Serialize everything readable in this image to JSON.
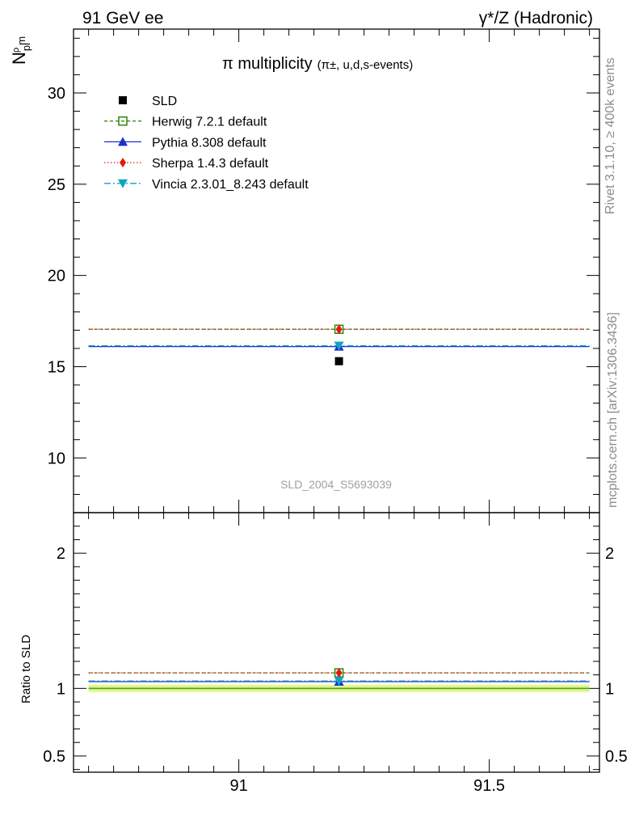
{
  "header": {
    "left": "91 GeV ee",
    "right": "γ*/Z (Hadronic)"
  },
  "side_labels": {
    "rivet": "Rivet 3.1.10, ≥ 400k events",
    "mcplots": "mcplots.cern.ch [arXiv:1306.3436]"
  },
  "watermark": "SLD_2004_S5693039",
  "colors": {
    "sld": "#000000",
    "herwig": "#3a8a17",
    "pythia": "#1a2fd0",
    "sherpa": "#e01b0f",
    "vincia": "#14a3c0",
    "band_outer": "#f3f79a",
    "band_inner": "#c8ee8c"
  },
  "chart_data": [
    {
      "type": "scatter",
      "title_main": "π multiplicity",
      "title_sub": "(π±, u,d,s-events)",
      "ylabel_main": "N",
      "ylabel_sub": "pi",
      "ylabel_sup": "ρ",
      "ylabel_tail": "m",
      "xlim": [
        90.67,
        91.72
      ],
      "ylim": [
        7.0,
        33.5
      ],
      "yticks": [
        10,
        15,
        20,
        25,
        30
      ],
      "ytick_labels": [
        "10",
        "15",
        "20",
        "25",
        "30"
      ],
      "x_bin": [
        90.7,
        91.7
      ],
      "x_center": 91.2,
      "series": [
        {
          "name": "SLD",
          "value": 15.3,
          "key": "sld",
          "marker": "square-filled"
        },
        {
          "name": "Herwig 7.2.1 default",
          "value": 17.05,
          "key": "herwig",
          "marker": "square-open",
          "dash": "4,3"
        },
        {
          "name": "Pythia 8.308 default",
          "value": 16.1,
          "key": "pythia",
          "marker": "triangle-up",
          "dash": ""
        },
        {
          "name": "Sherpa 1.4.3 default",
          "value": 17.05,
          "key": "sherpa",
          "marker": "diamond",
          "dash": "1.5,2.5"
        },
        {
          "name": "Vincia 2.3.01_8.243 default",
          "value": 16.15,
          "key": "vincia",
          "marker": "triangle-down",
          "dash": "8,3,2,3"
        }
      ]
    },
    {
      "type": "line",
      "ylabel": "Ratio to SLD",
      "xlim": [
        90.67,
        91.72
      ],
      "ylim": [
        0.38,
        2.3
      ],
      "yticks": [
        0.5,
        1,
        2
      ],
      "ytick_labels": [
        "0.5",
        "1",
        "2"
      ],
      "xticks": [
        91,
        91.5
      ],
      "xtick_labels": [
        "91",
        "91.5"
      ],
      "band_outer": [
        0.97,
        1.03
      ],
      "band_inner": [
        0.985,
        1.015
      ],
      "series": [
        {
          "name": "Herwig 7.2.1 default",
          "value": 1.115,
          "key": "herwig"
        },
        {
          "name": "Pythia 8.308 default",
          "value": 1.05,
          "key": "pythia"
        },
        {
          "name": "Sherpa 1.4.3 default",
          "value": 1.115,
          "key": "sherpa"
        },
        {
          "name": "Vincia 2.3.01_8.243 default",
          "value": 1.055,
          "key": "vincia"
        }
      ]
    }
  ]
}
